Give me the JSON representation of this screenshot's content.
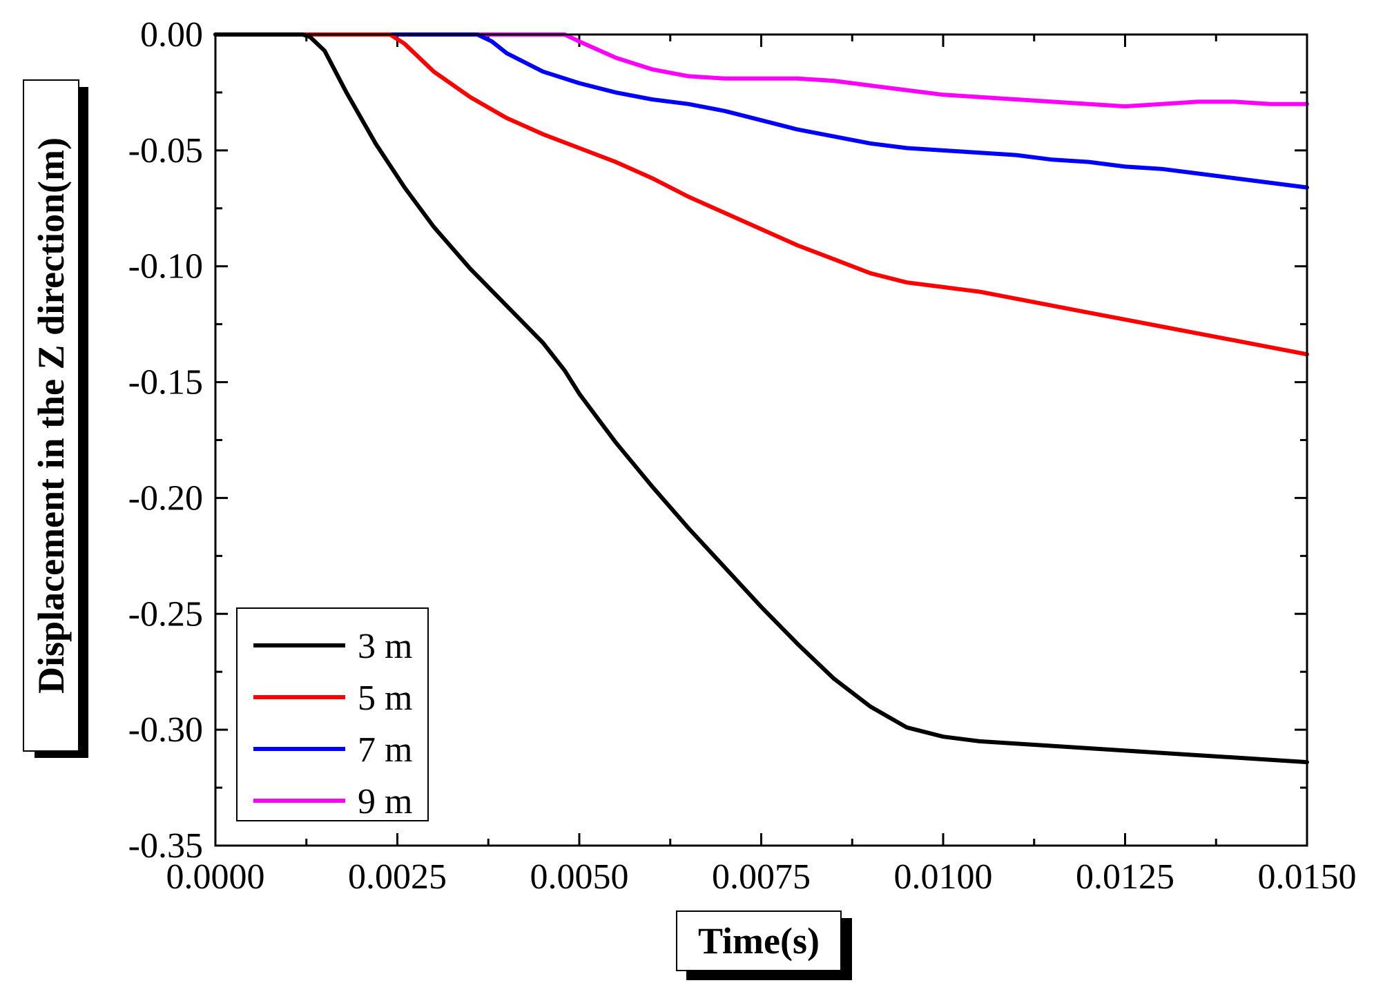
{
  "chart_data": {
    "type": "line",
    "title": "",
    "xlabel": "Time(s)",
    "ylabel": "Displacement in the Z direction(m)",
    "xlim": [
      0.0,
      0.015
    ],
    "ylim": [
      -0.35,
      0.0
    ],
    "x_ticks": [
      0.0,
      0.0025,
      0.005,
      0.0075,
      0.01,
      0.0125,
      0.015
    ],
    "x_tick_labels": [
      "0.0000",
      "0.0025",
      "0.0050",
      "0.0075",
      "0.0100",
      "0.0125",
      "0.0150"
    ],
    "y_ticks": [
      0.0,
      -0.05,
      -0.1,
      -0.15,
      -0.2,
      -0.25,
      -0.3,
      -0.35
    ],
    "y_tick_labels": [
      "0.00",
      "-0.05",
      "-0.10",
      "-0.15",
      "-0.20",
      "-0.25",
      "-0.30",
      "-0.35"
    ],
    "grid": false,
    "legend_position": "bottom-left",
    "series": [
      {
        "name": "3 m",
        "color": "#000000",
        "x": [
          0.0,
          0.0012,
          0.0013,
          0.0015,
          0.0018,
          0.0022,
          0.0026,
          0.003,
          0.0035,
          0.004,
          0.0045,
          0.0048,
          0.005,
          0.0055,
          0.006,
          0.0065,
          0.007,
          0.0075,
          0.008,
          0.0085,
          0.009,
          0.0095,
          0.01,
          0.0105,
          0.011,
          0.0115,
          0.012,
          0.0125,
          0.013,
          0.0135,
          0.014,
          0.0145,
          0.015
        ],
        "y": [
          0.0,
          0.0,
          -0.001,
          -0.007,
          -0.025,
          -0.047,
          -0.066,
          -0.083,
          -0.101,
          -0.117,
          -0.133,
          -0.145,
          -0.155,
          -0.176,
          -0.195,
          -0.213,
          -0.23,
          -0.247,
          -0.263,
          -0.278,
          -0.29,
          -0.299,
          -0.303,
          -0.305,
          -0.306,
          -0.307,
          -0.308,
          -0.309,
          -0.31,
          -0.311,
          -0.312,
          -0.313,
          -0.314
        ]
      },
      {
        "name": "5 m",
        "color": "#ff0000",
        "x": [
          0.0,
          0.0024,
          0.0026,
          0.003,
          0.0035,
          0.004,
          0.0045,
          0.005,
          0.0055,
          0.006,
          0.0065,
          0.007,
          0.0075,
          0.008,
          0.0085,
          0.009,
          0.0095,
          0.01,
          0.0105,
          0.011,
          0.0115,
          0.012,
          0.0125,
          0.013,
          0.0135,
          0.014,
          0.0145,
          0.015
        ],
        "y": [
          0.0,
          0.0,
          -0.004,
          -0.016,
          -0.027,
          -0.036,
          -0.043,
          -0.049,
          -0.055,
          -0.062,
          -0.07,
          -0.077,
          -0.084,
          -0.091,
          -0.097,
          -0.103,
          -0.107,
          -0.109,
          -0.111,
          -0.114,
          -0.117,
          -0.12,
          -0.123,
          -0.126,
          -0.129,
          -0.132,
          -0.135,
          -0.138
        ]
      },
      {
        "name": "7 m",
        "color": "#0000ff",
        "x": [
          0.0,
          0.0036,
          0.0038,
          0.004,
          0.0045,
          0.005,
          0.0055,
          0.006,
          0.0065,
          0.007,
          0.0075,
          0.008,
          0.0085,
          0.009,
          0.0095,
          0.01,
          0.0105,
          0.011,
          0.0115,
          0.012,
          0.0125,
          0.013,
          0.0135,
          0.014,
          0.0145,
          0.015
        ],
        "y": [
          0.0,
          0.0,
          -0.003,
          -0.008,
          -0.016,
          -0.021,
          -0.025,
          -0.028,
          -0.03,
          -0.033,
          -0.037,
          -0.041,
          -0.044,
          -0.047,
          -0.049,
          -0.05,
          -0.051,
          -0.052,
          -0.054,
          -0.055,
          -0.057,
          -0.058,
          -0.06,
          -0.062,
          -0.064,
          -0.066
        ]
      },
      {
        "name": "9 m",
        "color": "#ff00ff",
        "x": [
          0.0,
          0.0048,
          0.005,
          0.0055,
          0.006,
          0.0065,
          0.007,
          0.0075,
          0.008,
          0.0085,
          0.009,
          0.0095,
          0.01,
          0.0105,
          0.011,
          0.0115,
          0.012,
          0.0125,
          0.013,
          0.0135,
          0.014,
          0.0145,
          0.015
        ],
        "y": [
          0.0,
          0.0,
          -0.003,
          -0.01,
          -0.015,
          -0.018,
          -0.019,
          -0.019,
          -0.019,
          -0.02,
          -0.022,
          -0.024,
          -0.026,
          -0.027,
          -0.028,
          -0.029,
          -0.03,
          -0.031,
          -0.03,
          -0.029,
          -0.029,
          -0.03,
          -0.03
        ]
      }
    ]
  }
}
